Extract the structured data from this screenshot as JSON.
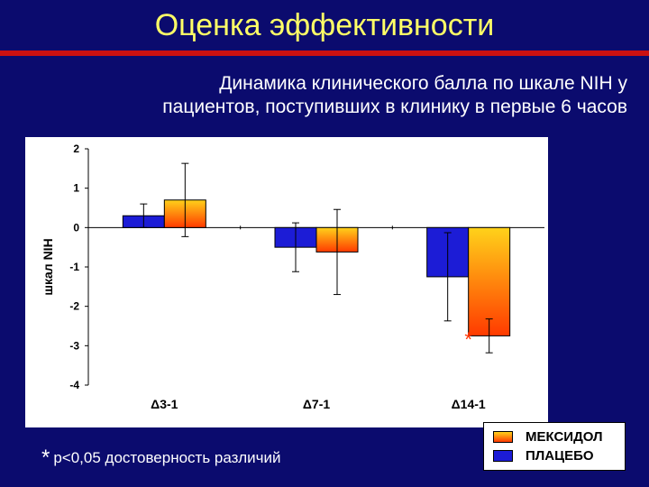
{
  "title": "Оценка эффективности",
  "subtitle_line1": "Динамика клинического балла по шкале NIH у",
  "subtitle_line2": "пациентов, поступивших в клинику в первые 6 часов",
  "footnote": {
    "star": "*",
    "text": "p<0,05 достоверность различий"
  },
  "colors": {
    "background": "#0b0b6e",
    "title": "#ffff66",
    "rule": "#cc1111",
    "placebo": "#1c1cd6",
    "mexidol_top": "#ffd21a",
    "mexidol_bottom": "#ff3a00",
    "significance": "#ff3300"
  },
  "chart_data": {
    "type": "bar",
    "ylabel": "шкал NIH",
    "xlabel": "",
    "ylim": [
      -4,
      2
    ],
    "yticks": [
      "2",
      "1",
      "0",
      "-1",
      "-2",
      "-3",
      "-4"
    ],
    "categories": [
      "Δ3-1",
      "Δ7-1",
      "Δ14-1"
    ],
    "grid": false,
    "legend_position": "bottom-right",
    "series": [
      {
        "name": "ПЛАЦЕБО",
        "values": [
          0.3,
          -0.5,
          -1.25
        ],
        "error": [
          0.3,
          0.62,
          1.12
        ]
      },
      {
        "name": "МЕКСИДОЛ",
        "values": [
          0.7,
          -0.62,
          -2.75
        ],
        "error": [
          0.93,
          1.08,
          0.43
        ]
      }
    ],
    "annotations": [
      {
        "category": "Δ14-1",
        "text": "*"
      }
    ]
  },
  "legend": {
    "items": [
      {
        "label": "МЕКСИДОЛ",
        "swatch": "mexidol"
      },
      {
        "label": "ПЛАЦЕБО",
        "swatch": "placebo"
      }
    ]
  }
}
